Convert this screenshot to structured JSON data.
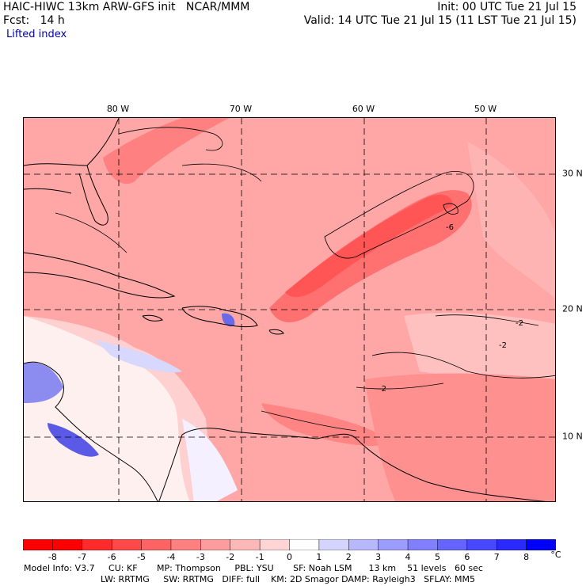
{
  "header": {
    "line1_left": "HAIC-HIWC 13km ARW-GFS init   NCAR/MMM",
    "line1_right": "Init: 00 UTC Tue 21 Jul 15",
    "line2_left": "Fcst:   14 h",
    "line2_right": "Valid: 14 UTC Tue 21 Jul 15 (11 LST Tue 21 Jul 15)",
    "field_name": "Lifted index"
  },
  "map": {
    "lon_labels": [
      "80 W",
      "70 W",
      "60 W",
      "50 W"
    ],
    "lat_labels": [
      "30 N",
      "20 N",
      "10 N"
    ],
    "contour_labels": [
      "-6",
      "-2",
      "-2",
      "-2"
    ]
  },
  "colorbar": {
    "ticks": [
      "-8",
      "-7",
      "-6",
      "-5",
      "-4",
      "-3",
      "-2",
      "-1",
      "0",
      "1",
      "2",
      "3",
      "4",
      "5",
      "6",
      "7",
      "8"
    ],
    "unit": "°C",
    "colors": [
      "#ff0000",
      "#ff2a2a",
      "#ff4848",
      "#ff6464",
      "#ff8080",
      "#ff9c9c",
      "#ffb8b8",
      "#ffd4d4",
      "#ffffff",
      "#d4d4ff",
      "#b8b8ff",
      "#9c9cff",
      "#8080ff",
      "#6464ff",
      "#4848ff",
      "#2a2aff",
      "#0000ff"
    ]
  },
  "footer": {
    "line1": "Model Info: V3.7     CU: KF       MP: Thompson     PBL: YSU       SF: Noah LSM      13 km    51 levels   60 sec",
    "line2": "LW: RRTMG     SW: RRTMG   DIFF: full    KM: 2D Smagor DAMP: Rayleigh3   SFLAY: MM5"
  }
}
